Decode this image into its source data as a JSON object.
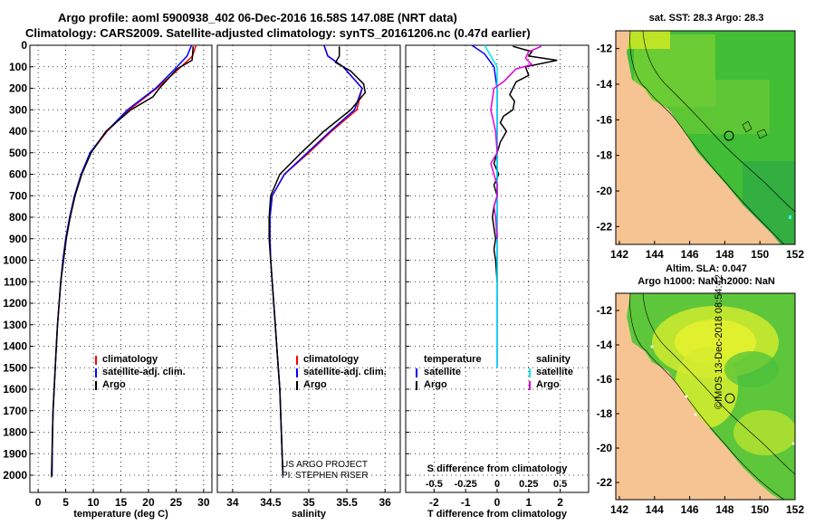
{
  "header": {
    "line1": "Argo profile: aoml 5900938_402 06-Dec-2016 16.58S 147.08E (NRT data)",
    "line2": "Climatology: CARS2009. Satellite-adjusted climatology: synTS_20161206.nc (0.47d earlier)"
  },
  "colors": {
    "clim": "#ff0000",
    "sat": "#0000ff",
    "argo": "#000000",
    "sal_sat": "#00e5ee",
    "sal_argo": "#dd00dd",
    "land": "#f6c493"
  },
  "chart_data": [
    {
      "type": "line",
      "name": "temperature",
      "xlabel": "temperature (deg C)",
      "xlim": [
        -1.5,
        31.5
      ],
      "xticks": [
        "0",
        "5",
        "10",
        "15",
        "20",
        "25",
        "30"
      ],
      "xtickvals": [
        0,
        5,
        10,
        15,
        20,
        25,
        30
      ],
      "ylim": [
        0,
        2080
      ],
      "yticks": [
        "0",
        "100",
        "200",
        "300",
        "400",
        "500",
        "600",
        "700",
        "800",
        "900",
        "1000",
        "1100",
        "1200",
        "1300",
        "1400",
        "1500",
        "1600",
        "1700",
        "1800",
        "1900",
        "2000"
      ],
      "ytickvals": [
        0,
        100,
        200,
        300,
        400,
        500,
        600,
        700,
        800,
        900,
        1000,
        1100,
        1200,
        1300,
        1400,
        1500,
        1600,
        1700,
        1800,
        1900,
        2000
      ],
      "legend": [
        "climatology",
        "satellite-adj. clim.",
        "Argo"
      ],
      "series": [
        {
          "name": "climatology",
          "color": "#ff0000",
          "x": [
            28.6,
            28.0,
            25.5,
            21.5,
            16.5,
            12.5,
            9.5,
            7.8,
            6.6,
            5.7,
            5.0,
            4.5,
            4.1,
            3.8,
            3.5,
            3.3,
            3.1,
            2.9,
            2.7,
            2.6,
            2.5
          ],
          "y": [
            0,
            50,
            110,
            200,
            300,
            400,
            500,
            600,
            700,
            800,
            900,
            1000,
            1100,
            1200,
            1300,
            1400,
            1500,
            1600,
            1700,
            1800,
            2000
          ]
        },
        {
          "name": "satellite-adj. clim.",
          "color": "#0000ff",
          "x": [
            27.8,
            27.0,
            24.8,
            21.3,
            16.2,
            12.4,
            9.4,
            7.8,
            6.6,
            5.7,
            5.0,
            4.5,
            4.1,
            3.8,
            3.5,
            3.3,
            3.1,
            2.9,
            2.7,
            2.6,
            2.5
          ],
          "y": [
            0,
            50,
            110,
            200,
            300,
            400,
            500,
            600,
            700,
            800,
            900,
            1000,
            1100,
            1200,
            1300,
            1400,
            1500,
            1600,
            1700,
            1800,
            2000
          ]
        },
        {
          "name": "Argo",
          "color": "#000000",
          "x": [
            28.1,
            28.0,
            27.9,
            25.2,
            22.0,
            20.8,
            16.8,
            12.3,
            9.6,
            7.9,
            6.7,
            5.8,
            5.1,
            4.6,
            4.1,
            3.8,
            3.5,
            3.3,
            3.1,
            2.9,
            2.7,
            2.6,
            2.4
          ],
          "y": [
            5,
            40,
            70,
            110,
            200,
            240,
            300,
            400,
            500,
            600,
            700,
            800,
            900,
            1000,
            1100,
            1200,
            1300,
            1400,
            1500,
            1600,
            1700,
            1800,
            2010
          ]
        }
      ]
    },
    {
      "type": "line",
      "name": "salinity",
      "xlabel": "salinity",
      "xlim": [
        33.8,
        36.2
      ],
      "xticks": [
        "34",
        "34.5",
        "35",
        "35.5",
        "36"
      ],
      "xtickvals": [
        34,
        34.5,
        35,
        35.5,
        36
      ],
      "ylim": [
        0,
        2080
      ],
      "legend": [
        "climatology",
        "satellite-adj. clim.",
        "Argo"
      ],
      "credit_line1": "US ARGO PROJECT",
      "credit_line2": "PI: STEPHEN RISER",
      "series": [
        {
          "name": "climatology",
          "color": "#ff0000",
          "x": [
            35.2,
            35.25,
            35.45,
            35.7,
            35.63,
            35.3,
            35.0,
            34.68,
            34.52,
            34.49,
            34.49,
            34.5,
            34.52,
            34.54,
            34.56,
            34.58,
            34.6,
            34.62,
            34.64,
            34.66
          ],
          "y": [
            0,
            50,
            100,
            200,
            300,
            400,
            500,
            600,
            700,
            800,
            900,
            1000,
            1100,
            1200,
            1300,
            1400,
            1500,
            1600,
            1800,
            2000
          ]
        },
        {
          "name": "satellite-adj. clim.",
          "color": "#0000ff",
          "x": [
            35.2,
            35.25,
            35.45,
            35.7,
            35.6,
            35.28,
            34.98,
            34.68,
            34.52,
            34.49,
            34.49,
            34.5,
            34.52,
            34.54,
            34.56,
            34.58,
            34.6,
            34.62,
            34.64,
            34.66
          ],
          "y": [
            0,
            50,
            100,
            200,
            300,
            400,
            500,
            600,
            700,
            800,
            900,
            1000,
            1100,
            1200,
            1300,
            1400,
            1500,
            1600,
            1800,
            2000
          ]
        },
        {
          "name": "Argo",
          "color": "#000000",
          "x": [
            35.4,
            35.4,
            35.35,
            35.55,
            35.72,
            35.74,
            35.55,
            35.2,
            34.9,
            34.62,
            34.5,
            34.48,
            34.48,
            34.5,
            34.52,
            34.54,
            34.56,
            34.58,
            34.6,
            34.62,
            34.64,
            34.66
          ],
          "y": [
            5,
            50,
            80,
            120,
            180,
            220,
            300,
            400,
            500,
            600,
            700,
            800,
            900,
            1000,
            1100,
            1200,
            1300,
            1400,
            1500,
            1600,
            1800,
            2000
          ]
        }
      ]
    },
    {
      "type": "line",
      "name": "difference",
      "xlabel": "T difference from climatology",
      "xlabel_top": "S difference from climatology",
      "xlim": [
        -2.9,
        2.9
      ],
      "xticks": [
        "-2",
        "-1",
        "0",
        "1",
        "2"
      ],
      "xtickvals": [
        -2,
        -1,
        0,
        1,
        2
      ],
      "xticks_top": [
        "-0.5",
        "-0.25",
        "0",
        "0.25",
        "0.5"
      ],
      "xtickvals_top": [
        -2,
        -1,
        0,
        1,
        2
      ],
      "ylim": [
        0,
        2080
      ],
      "legend_left_title": "temperature",
      "legend_left": [
        "satellite",
        "Argo"
      ],
      "legend_right_title": "salinity",
      "legend_right": [
        "satellite",
        "Argo"
      ],
      "series": [
        {
          "name": "T satellite",
          "color": "#0000ff",
          "x": [
            -0.8,
            -0.4,
            -0.1,
            0,
            0,
            0,
            0,
            0,
            0,
            0,
            0
          ],
          "y": [
            0,
            40,
            100,
            200,
            400,
            600,
            800,
            1000,
            1200,
            1400,
            1500
          ]
        },
        {
          "name": "T Argo",
          "color": "#000000",
          "x": [
            0.5,
            1.1,
            1.0,
            1.9,
            0.9,
            1.0,
            0.6,
            0.5,
            0.4,
            0.55,
            0.5,
            0.2,
            0.1,
            0.3,
            0.1,
            0.0,
            -0.1,
            0.05,
            -0.1,
            0.0,
            -0.1,
            -0.15,
            -0.1,
            -0.05,
            -0.1,
            -0.05,
            0.0
          ],
          "y": [
            5,
            30,
            50,
            70,
            100,
            140,
            170,
            200,
            230,
            260,
            300,
            330,
            360,
            400,
            450,
            500,
            550,
            600,
            650,
            700,
            750,
            800,
            850,
            900,
            950,
            1000,
            1100
          ]
        },
        {
          "name": "S satellite",
          "color": "#00e5ee",
          "x": [
            -0.4,
            -0.2,
            0,
            0,
            0,
            0,
            0,
            0,
            0,
            0,
            0,
            0,
            0
          ],
          "y": [
            0,
            50,
            100,
            200,
            300,
            500,
            700,
            900,
            1100,
            1200,
            1300,
            1400,
            1500
          ]
        },
        {
          "name": "S Argo",
          "color": "#dd00dd",
          "x": [
            1.4,
            1.0,
            0.9,
            1.1,
            0.6,
            0.4,
            0.2,
            -0.1,
            -0.2,
            -0.05,
            0.0,
            -0.2,
            -0.1,
            0.0,
            0.0,
            -0.1,
            -0.05,
            0.0
          ],
          "y": [
            5,
            30,
            60,
            90,
            110,
            140,
            170,
            200,
            300,
            400,
            500,
            550,
            600,
            650,
            700,
            750,
            800,
            900
          ]
        }
      ]
    }
  ],
  "maps": [
    {
      "name": "sst-map",
      "title": "sat. SST: 28.3 Argo: 28.3",
      "yticks": [
        "-12",
        "-14",
        "-16",
        "-18",
        "-20",
        "-22"
      ],
      "xticks": [
        "142",
        "144",
        "146",
        "148",
        "150",
        "152"
      ]
    },
    {
      "name": "sla-map",
      "title1": "Altim. SLA: 0.047",
      "title2": "Argo h1000: NaN h2000: NaN",
      "yticks": [
        "-12",
        "-14",
        "-16",
        "-18",
        "-20",
        "-22"
      ],
      "xticks": [
        "142",
        "144",
        "146",
        "148",
        "150",
        "152"
      ]
    }
  ],
  "watermark": "©IMOS 13-Dec-2018 08:54:42"
}
